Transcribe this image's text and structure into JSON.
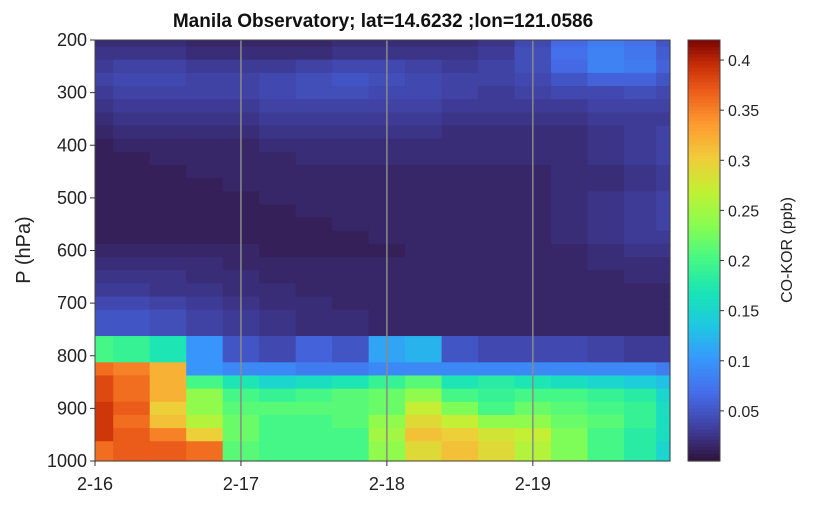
{
  "chart_data": {
    "type": "heatmap",
    "title": "Manila Observatory; lat=14.6232 ;lon=121.0586",
    "ylabel": "P (hPa)",
    "xlabel": "",
    "colorbar_label": "CO-KOR (ppb)",
    "x_ticks": [
      "2-16",
      "2-17",
      "2-18",
      "2-19"
    ],
    "x_range_days": [
      0,
      3.94
    ],
    "y_ticks": [
      200,
      300,
      400,
      500,
      600,
      700,
      800,
      900,
      1000
    ],
    "ylim": [
      200,
      1000
    ],
    "y_reversed": true,
    "colorbar_range": [
      0,
      0.42
    ],
    "colorbar_ticks": [
      0.05,
      0.1,
      0.15,
      0.2,
      0.25,
      0.3,
      0.35,
      0.4
    ],
    "colormap": "turbo",
    "vertical_lines_at": [
      "2-17",
      "2-18",
      "2-19"
    ],
    "levels_hPa": [
      200,
      225,
      250,
      275,
      300,
      325,
      350,
      375,
      400,
      425,
      450,
      475,
      500,
      525,
      550,
      575,
      600,
      625,
      650,
      675,
      700,
      725,
      750,
      775,
      800,
      825,
      850,
      875,
      900,
      925,
      950,
      975,
      1000
    ],
    "time_days": [
      0,
      0.25,
      0.5,
      0.75,
      1,
      1.25,
      1.5,
      1.75,
      2,
      2.25,
      2.5,
      2.75,
      3,
      3.25,
      3.5,
      3.75,
      3.94
    ],
    "values": [
      [
        0.02,
        0.02,
        0.02,
        0.015,
        0.015,
        0.015,
        0.015,
        0.02,
        0.02,
        0.02,
        0.02,
        0.025,
        0.04,
        0.065,
        0.08,
        0.07,
        0.05
      ],
      [
        0.025,
        0.025,
        0.025,
        0.02,
        0.02,
        0.02,
        0.02,
        0.025,
        0.025,
        0.025,
        0.025,
        0.03,
        0.045,
        0.07,
        0.085,
        0.075,
        0.055
      ],
      [
        0.03,
        0.035,
        0.035,
        0.03,
        0.03,
        0.03,
        0.035,
        0.04,
        0.04,
        0.035,
        0.03,
        0.035,
        0.045,
        0.065,
        0.085,
        0.08,
        0.06
      ],
      [
        0.035,
        0.04,
        0.04,
        0.035,
        0.035,
        0.04,
        0.045,
        0.05,
        0.045,
        0.04,
        0.035,
        0.035,
        0.04,
        0.05,
        0.06,
        0.06,
        0.05
      ],
      [
        0.03,
        0.035,
        0.035,
        0.035,
        0.035,
        0.04,
        0.045,
        0.045,
        0.04,
        0.04,
        0.035,
        0.03,
        0.035,
        0.04,
        0.04,
        0.045,
        0.04
      ],
      [
        0.025,
        0.03,
        0.03,
        0.03,
        0.03,
        0.035,
        0.035,
        0.035,
        0.035,
        0.035,
        0.03,
        0.03,
        0.03,
        0.03,
        0.035,
        0.035,
        0.035
      ],
      [
        0.02,
        0.025,
        0.025,
        0.025,
        0.025,
        0.03,
        0.03,
        0.03,
        0.03,
        0.03,
        0.025,
        0.025,
        0.025,
        0.025,
        0.03,
        0.03,
        0.03
      ],
      [
        0.015,
        0.02,
        0.02,
        0.02,
        0.02,
        0.025,
        0.025,
        0.025,
        0.025,
        0.025,
        0.02,
        0.02,
        0.02,
        0.02,
        0.025,
        0.03,
        0.035
      ],
      [
        0.01,
        0.015,
        0.015,
        0.015,
        0.015,
        0.02,
        0.02,
        0.02,
        0.02,
        0.02,
        0.02,
        0.02,
        0.02,
        0.02,
        0.025,
        0.03,
        0.035
      ],
      [
        0.01,
        0.01,
        0.015,
        0.015,
        0.015,
        0.015,
        0.02,
        0.02,
        0.02,
        0.02,
        0.02,
        0.02,
        0.02,
        0.02,
        0.025,
        0.03,
        0.035
      ],
      [
        0.01,
        0.01,
        0.01,
        0.015,
        0.015,
        0.015,
        0.015,
        0.015,
        0.015,
        0.015,
        0.015,
        0.015,
        0.015,
        0.02,
        0.02,
        0.025,
        0.03
      ],
      [
        0.01,
        0.01,
        0.01,
        0.01,
        0.015,
        0.015,
        0.015,
        0.015,
        0.015,
        0.015,
        0.015,
        0.015,
        0.015,
        0.02,
        0.02,
        0.025,
        0.03
      ],
      [
        0.01,
        0.01,
        0.01,
        0.01,
        0.01,
        0.015,
        0.015,
        0.015,
        0.015,
        0.015,
        0.015,
        0.015,
        0.015,
        0.02,
        0.025,
        0.03,
        0.035
      ],
      [
        0.01,
        0.01,
        0.01,
        0.01,
        0.01,
        0.01,
        0.015,
        0.015,
        0.015,
        0.015,
        0.015,
        0.015,
        0.015,
        0.02,
        0.025,
        0.03,
        0.035
      ],
      [
        0.01,
        0.01,
        0.01,
        0.01,
        0.01,
        0.01,
        0.01,
        0.015,
        0.015,
        0.015,
        0.015,
        0.015,
        0.015,
        0.02,
        0.025,
        0.03,
        0.035
      ],
      [
        0.01,
        0.01,
        0.01,
        0.01,
        0.01,
        0.01,
        0.01,
        0.01,
        0.015,
        0.015,
        0.015,
        0.015,
        0.015,
        0.02,
        0.025,
        0.03,
        0.03
      ],
      [
        0.015,
        0.015,
        0.015,
        0.015,
        0.015,
        0.01,
        0.01,
        0.01,
        0.01,
        0.015,
        0.015,
        0.015,
        0.015,
        0.015,
        0.02,
        0.025,
        0.025
      ],
      [
        0.02,
        0.02,
        0.02,
        0.02,
        0.015,
        0.015,
        0.015,
        0.015,
        0.015,
        0.015,
        0.015,
        0.015,
        0.015,
        0.015,
        0.02,
        0.02,
        0.02
      ],
      [
        0.025,
        0.025,
        0.025,
        0.02,
        0.02,
        0.015,
        0.015,
        0.015,
        0.015,
        0.015,
        0.015,
        0.015,
        0.015,
        0.015,
        0.015,
        0.02,
        0.02
      ],
      [
        0.03,
        0.03,
        0.025,
        0.025,
        0.02,
        0.02,
        0.015,
        0.015,
        0.015,
        0.015,
        0.015,
        0.015,
        0.015,
        0.015,
        0.015,
        0.015,
        0.015
      ],
      [
        0.04,
        0.04,
        0.035,
        0.03,
        0.025,
        0.02,
        0.02,
        0.015,
        0.015,
        0.015,
        0.015,
        0.015,
        0.015,
        0.015,
        0.015,
        0.015,
        0.015
      ],
      [
        0.05,
        0.05,
        0.045,
        0.035,
        0.03,
        0.025,
        0.02,
        0.02,
        0.015,
        0.015,
        0.015,
        0.015,
        0.015,
        0.015,
        0.015,
        0.015,
        0.015
      ],
      [
        0.05,
        0.05,
        0.045,
        0.035,
        0.03,
        0.025,
        0.02,
        0.02,
        0.015,
        0.015,
        0.015,
        0.015,
        0.015,
        0.015,
        0.015,
        0.015,
        0.015
      ],
      [
        0.2,
        0.19,
        0.17,
        0.1,
        0.05,
        0.04,
        0.06,
        0.05,
        0.11,
        0.12,
        0.05,
        0.04,
        0.04,
        0.04,
        0.035,
        0.03,
        0.03
      ],
      [
        0.2,
        0.19,
        0.17,
        0.1,
        0.05,
        0.04,
        0.06,
        0.05,
        0.11,
        0.12,
        0.05,
        0.04,
        0.04,
        0.04,
        0.035,
        0.03,
        0.03
      ],
      [
        0.36,
        0.35,
        0.32,
        0.1,
        0.09,
        0.09,
        0.08,
        0.08,
        0.09,
        0.09,
        0.09,
        0.09,
        0.09,
        0.09,
        0.09,
        0.09,
        0.08
      ],
      [
        0.38,
        0.36,
        0.32,
        0.2,
        0.17,
        0.15,
        0.16,
        0.17,
        0.19,
        0.21,
        0.17,
        0.18,
        0.17,
        0.16,
        0.15,
        0.14,
        0.13
      ],
      [
        0.38,
        0.36,
        0.32,
        0.24,
        0.2,
        0.19,
        0.2,
        0.21,
        0.22,
        0.24,
        0.2,
        0.19,
        0.2,
        0.2,
        0.19,
        0.18,
        0.15
      ],
      [
        0.39,
        0.37,
        0.3,
        0.24,
        0.21,
        0.21,
        0.21,
        0.21,
        0.22,
        0.27,
        0.23,
        0.2,
        0.22,
        0.21,
        0.2,
        0.19,
        0.16
      ],
      [
        0.39,
        0.36,
        0.31,
        0.26,
        0.22,
        0.2,
        0.2,
        0.21,
        0.24,
        0.29,
        0.27,
        0.24,
        0.24,
        0.22,
        0.21,
        0.19,
        0.16
      ],
      [
        0.39,
        0.37,
        0.35,
        0.3,
        0.22,
        0.2,
        0.2,
        0.2,
        0.25,
        0.31,
        0.3,
        0.28,
        0.27,
        0.23,
        0.2,
        0.18,
        0.16
      ],
      [
        0.36,
        0.37,
        0.37,
        0.36,
        0.21,
        0.2,
        0.2,
        0.2,
        0.24,
        0.29,
        0.31,
        0.29,
        0.26,
        0.23,
        0.2,
        0.18,
        0.15
      ],
      [
        0.36,
        0.37,
        0.37,
        0.36,
        0.21,
        0.2,
        0.2,
        0.2,
        0.24,
        0.29,
        0.31,
        0.29,
        0.26,
        0.23,
        0.2,
        0.18,
        0.15
      ]
    ]
  }
}
